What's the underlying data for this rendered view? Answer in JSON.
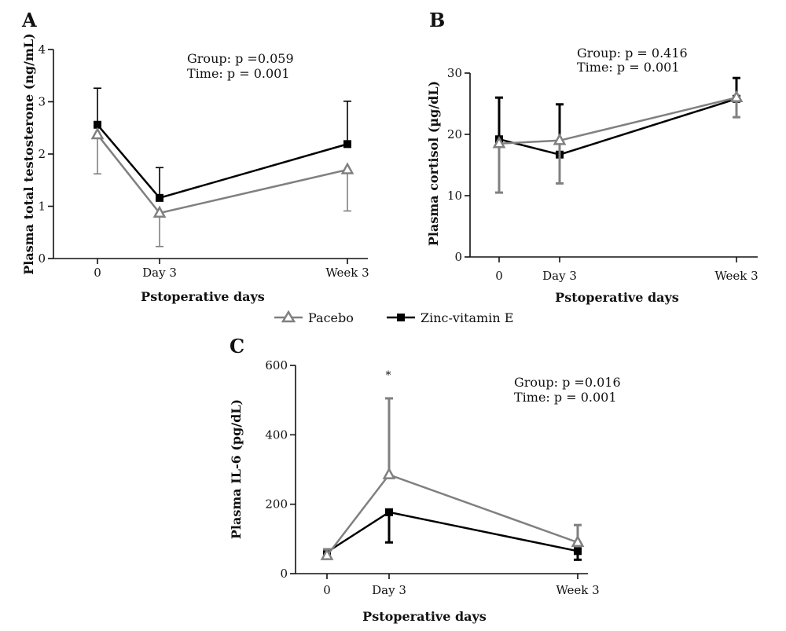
{
  "colors": {
    "pacebo": "#808080",
    "zinc": "#000000",
    "axis": "#111111"
  },
  "legend": {
    "items": [
      {
        "label": "Pacebo",
        "marker": "open-triangle-icon",
        "color": "#808080"
      },
      {
        "label": "Zinc-vitamin E",
        "marker": "filled-square-icon",
        "color": "#000000"
      }
    ]
  },
  "chart_data": [
    {
      "panel": "A",
      "type": "line",
      "xlabel": "Pstoperative days",
      "ylabel": "Plasma total testosterone (ng/mL)",
      "categories": [
        "0",
        "Day 3",
        "Week 3"
      ],
      "x_positions_days": [
        0,
        3,
        21
      ],
      "ylim": [
        0,
        4
      ],
      "yticks": [
        0,
        1,
        2,
        3,
        4
      ],
      "stats": [
        "Group: p =0.059",
        "Time: p = 0.001"
      ],
      "annotation": "",
      "series": [
        {
          "name": "Pacebo",
          "values": [
            2.37,
            0.87,
            1.7
          ],
          "error_low": [
            1.62,
            0.23,
            0.91
          ],
          "error_high": [
            2.37,
            0.87,
            1.7
          ]
        },
        {
          "name": "Zinc-vitamin E",
          "values": [
            2.56,
            1.16,
            2.19
          ],
          "error_low": [
            2.56,
            1.16,
            2.19
          ],
          "error_high": [
            3.26,
            1.74,
            3.01
          ]
        }
      ]
    },
    {
      "panel": "B",
      "type": "line",
      "xlabel": "Pstoperative days",
      "ylabel": "Plasma cortisol (µg/dL)",
      "categories": [
        "0",
        "Day 3",
        "Week 3"
      ],
      "x_positions_days": [
        0,
        3,
        21
      ],
      "ylim": [
        0,
        30
      ],
      "yticks": [
        0,
        10,
        20,
        30
      ],
      "stats": [
        "Group: p = 0.416",
        "Time: p = 0.001"
      ],
      "annotation": "",
      "series": [
        {
          "name": "Pacebo",
          "values": [
            18.5,
            19.0,
            26.0
          ],
          "error_low": [
            10.5,
            12.0,
            22.8
          ],
          "error_high": [
            18.5,
            19.0,
            26.0
          ]
        },
        {
          "name": "Zinc-vitamin E",
          "values": [
            19.2,
            16.7,
            25.8
          ],
          "error_low": [
            19.2,
            16.7,
            25.8
          ],
          "error_high": [
            26.0,
            24.9,
            29.2
          ]
        }
      ]
    },
    {
      "panel": "C",
      "type": "line",
      "xlabel": "Pstoperative days",
      "ylabel": "Plasma IL-6 (pg/dL)",
      "categories": [
        "0",
        "Day 3",
        "Week 3"
      ],
      "x_positions_days": [
        0,
        3,
        21
      ],
      "ylim": [
        0,
        600
      ],
      "yticks": [
        0,
        200,
        400,
        600
      ],
      "stats": [
        "Group: p =0.016",
        "Time: p = 0.001"
      ],
      "annotation": "*",
      "series": [
        {
          "name": "Pacebo",
          "values": [
            52,
            285,
            90
          ],
          "error_low": [
            52,
            285,
            90
          ],
          "error_high": [
            70,
            505,
            140
          ]
        },
        {
          "name": "Zinc-vitamin E",
          "values": [
            62,
            177,
            65
          ],
          "error_low": [
            45,
            90,
            40
          ],
          "error_high": [
            62,
            177,
            65
          ]
        }
      ]
    }
  ]
}
